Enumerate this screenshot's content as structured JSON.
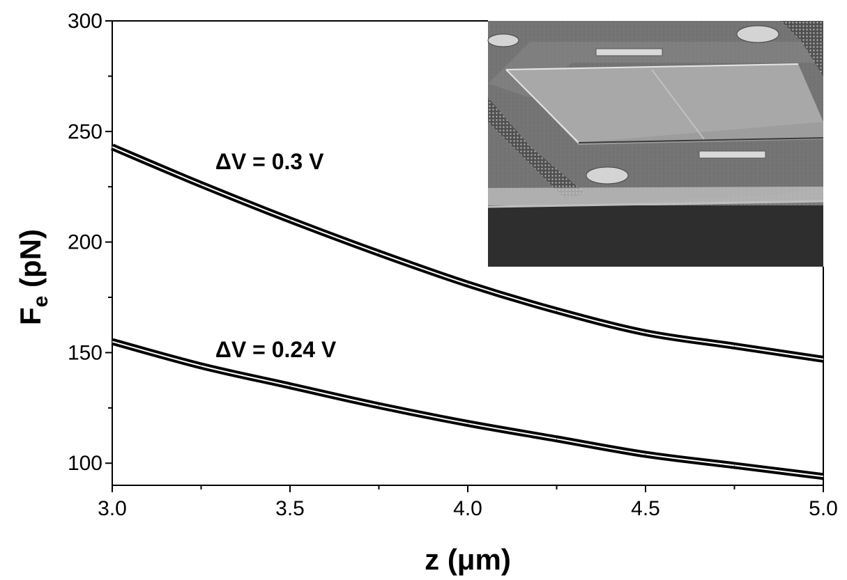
{
  "chart_data": {
    "type": "line",
    "xlabel": "z (μm)",
    "ylabel_main": "F",
    "ylabel_sub": "e",
    "ylabel_unit": " (pN)",
    "xlim": [
      3.0,
      5.0
    ],
    "ylim": [
      90,
      300
    ],
    "xticks": [
      3.0,
      3.5,
      4.0,
      4.5,
      5.0
    ],
    "xtick_labels": [
      "3.0",
      "3.5",
      "4.0",
      "4.5",
      "5.0"
    ],
    "yticks": [
      100,
      150,
      200,
      250,
      300
    ],
    "ytick_labels": [
      "100",
      "150",
      "200",
      "250",
      "300"
    ],
    "grid": false,
    "x": [
      3.0,
      3.25,
      3.5,
      3.75,
      4.0,
      4.25,
      4.5,
      4.75,
      5.0
    ],
    "series": [
      {
        "values": [
          243,
          226,
          210,
          195,
          181,
          169,
          159,
          153,
          147
        ],
        "color": "#000000"
      },
      {
        "values": [
          155,
          144,
          135,
          126,
          118,
          111,
          104,
          99,
          94
        ],
        "color": "#000000"
      }
    ],
    "annotations": [
      {
        "text": "ΔV = 0.3 V",
        "x": 3.29,
        "y": 233
      },
      {
        "text": "ΔV = 0.24 V",
        "x": 3.29,
        "y": 148
      }
    ],
    "inset": {
      "description_icon": "sem-micrograph-image"
    }
  }
}
